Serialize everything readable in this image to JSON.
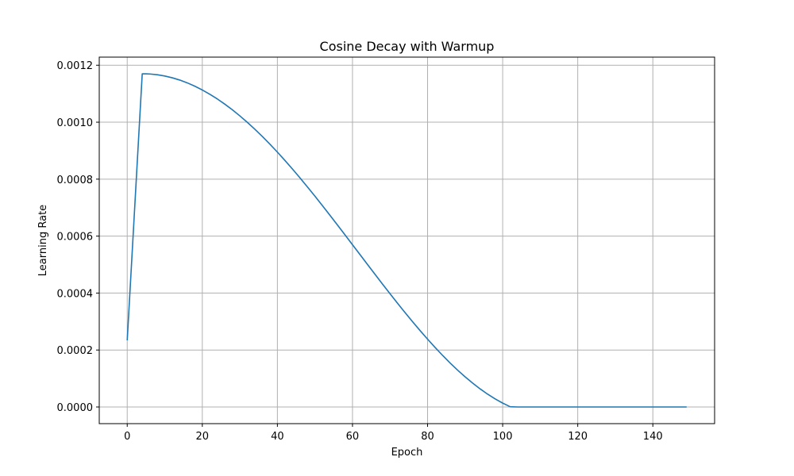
{
  "chart_data": {
    "type": "line",
    "title": "Cosine Decay with Warmup",
    "xlabel": "Epoch",
    "ylabel": "Learning Rate",
    "xlim": [
      -7.45,
      156.45
    ],
    "ylim": [
      -5.85e-05,
      0.0012285
    ],
    "xticks": [
      0,
      20,
      40,
      60,
      80,
      100,
      120,
      140
    ],
    "xtick_labels": [
      "0",
      "20",
      "40",
      "60",
      "80",
      "100",
      "120",
      "140"
    ],
    "yticks": [
      0.0,
      0.0002,
      0.0004,
      0.0006,
      0.0008,
      0.001,
      0.0012
    ],
    "ytick_labels": [
      "0.0000",
      "0.0002",
      "0.0004",
      "0.0006",
      "0.0008",
      "0.0010",
      "0.0012"
    ],
    "grid": true,
    "series": [
      {
        "color": "#1f77b4",
        "x": [
          0,
          1,
          2,
          3,
          4,
          5,
          6,
          8,
          10,
          12,
          14,
          16,
          18,
          20,
          22,
          24,
          26,
          28,
          30,
          32,
          34,
          36,
          38,
          40,
          42,
          44,
          46,
          48,
          50,
          52,
          54,
          56,
          58,
          60,
          62,
          64,
          66,
          68,
          70,
          72,
          74,
          76,
          78,
          80,
          82,
          84,
          86,
          88,
          90,
          92,
          94,
          96,
          98,
          100,
          102,
          104,
          106,
          108,
          110,
          112,
          114,
          116,
          118,
          120,
          122,
          124,
          126,
          128,
          130,
          132,
          134,
          136,
          138,
          140,
          142,
          144,
          146,
          148,
          149
        ],
        "y": [
          0.000234,
          0.000468,
          0.000702,
          0.000936,
          0.00117,
          0.0011699,
          0.0011693,
          0.0011667,
          0.0011622,
          0.0011559,
          0.0011479,
          0.0011381,
          0.0011265,
          0.0011132,
          0.0010982,
          0.0010816,
          0.0010633,
          0.0010435,
          0.0010222,
          0.0009994,
          0.0009752,
          0.0009497,
          0.0009229,
          0.0008949,
          0.0008658,
          0.0008357,
          0.0008046,
          0.0007728,
          0.0007402,
          0.0007069,
          0.0006732,
          0.000639,
          0.0006045,
          0.0005698,
          0.0005351,
          0.0005004,
          0.0004658,
          0.0004315,
          0.0003976,
          0.0003642,
          0.0003314,
          0.0002994,
          0.0002683,
          0.0002381,
          0.000209,
          0.0001811,
          0.0001545,
          0.0001294,
          0.0001058,
          8.38e-05,
          6.35e-05,
          4.5e-05,
          2.83e-05,
          1.36e-05,
          9e-07,
          0.0,
          0.0,
          0.0,
          0.0,
          0.0,
          0.0,
          0.0,
          0.0,
          0.0,
          0.0,
          0.0,
          0.0,
          0.0,
          0.0,
          0.0,
          0.0,
          0.0,
          0.0,
          0.0,
          0.0,
          0.0,
          0.0,
          0.0,
          0.0
        ]
      }
    ]
  }
}
